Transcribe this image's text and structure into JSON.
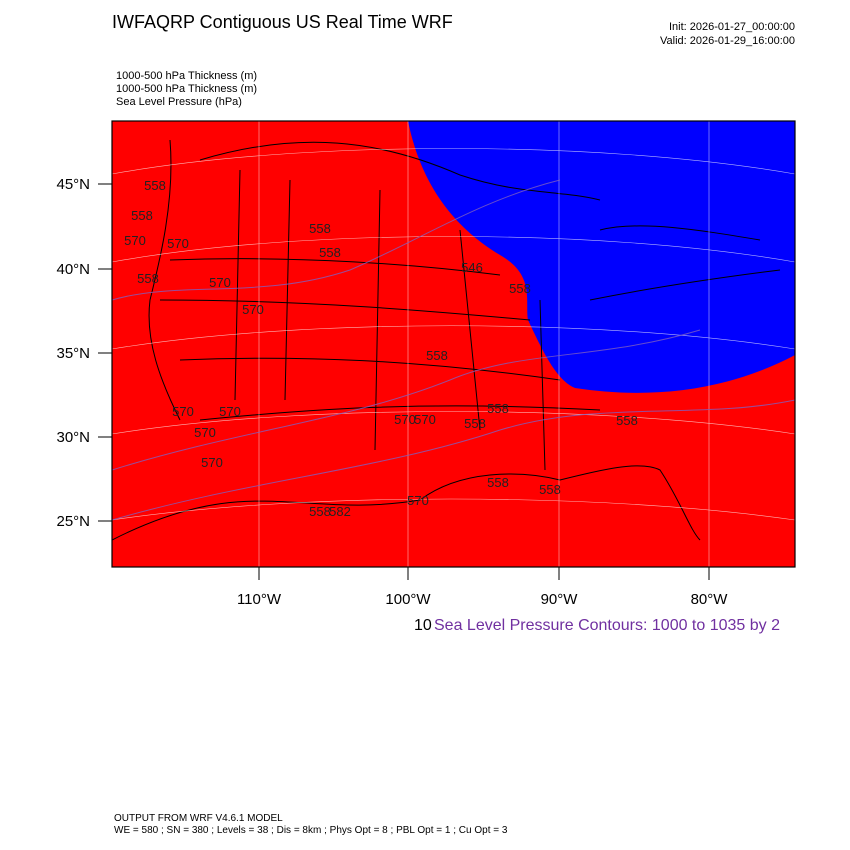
{
  "header": {
    "title": "IWFAQRP Contiguous US Real Time WRF",
    "init": "Init: 2026-01-27_00:00:00",
    "valid": "Valid: 2026-01-29_16:00:00",
    "fields": [
      "1000-500 hPa Thickness   (m)",
      "1000-500 hPa Thickness   (m)",
      "Sea Level Pressure   (hPa)"
    ]
  },
  "map": {
    "latitude_labels": [
      "45°N",
      "40°N",
      "35°N",
      "30°N",
      "25°N"
    ],
    "longitude_labels": [
      "110°W",
      "100°W",
      "90°W",
      "80°W"
    ],
    "contour_labels": [
      558,
      558,
      570,
      570,
      558,
      570,
      570,
      558,
      558,
      546,
      558,
      558,
      570,
      570,
      570,
      570,
      570,
      570,
      558,
      558,
      558,
      558,
      558,
      582,
      558,
      570
    ]
  },
  "legend": {
    "prefix": "10",
    "text": "Sea Level Pressure Contours: 1000 to 1035 by 2"
  },
  "footer": {
    "model": "OUTPUT FROM WRF V4.6.1 MODEL",
    "settings": "WE = 580 ; SN = 380 ; Levels = 38 ; Dis = 8km ; Phys Opt = 8 ; PBL Opt = 1 ; Cu Opt = 3"
  }
}
